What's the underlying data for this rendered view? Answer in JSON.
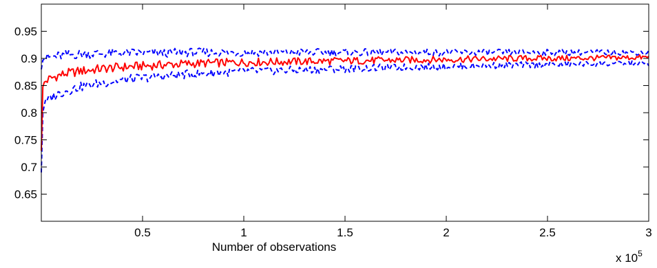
{
  "chart_data": {
    "type": "line",
    "xlabel": "Number of observations",
    "x_multiplier_label": "x 10",
    "x_multiplier_exponent": "5",
    "xlim": [
      0,
      300000
    ],
    "ylim": [
      0.6,
      1.0
    ],
    "xticks": [
      50000,
      100000,
      150000,
      200000,
      250000,
      300000
    ],
    "xtick_labels": [
      "0.5",
      "1",
      "1.5",
      "2",
      "2.5",
      "3"
    ],
    "yticks": [
      0.65,
      0.7,
      0.75,
      0.8,
      0.85,
      0.9,
      0.95
    ],
    "ytick_labels": [
      "0.65",
      "0.7",
      "0.75",
      "0.8",
      "0.85",
      "0.9",
      "0.95"
    ],
    "grid": false,
    "series": [
      {
        "color": "#ff0000",
        "style": "solid",
        "x": [
          0,
          500,
          1000,
          2000,
          4000,
          8000,
          12000,
          20000,
          30000,
          40000,
          50000,
          60000,
          70000,
          80000,
          90000,
          100000,
          120000,
          140000,
          160000,
          180000,
          200000,
          220000,
          240000,
          260000,
          280000,
          300000
        ],
        "values": [
          0.73,
          0.84,
          0.855,
          0.858,
          0.862,
          0.868,
          0.872,
          0.877,
          0.881,
          0.884,
          0.886,
          0.888,
          0.89,
          0.891,
          0.892,
          0.893,
          0.894,
          0.895,
          0.896,
          0.897,
          0.898,
          0.899,
          0.9,
          0.9,
          0.901,
          0.902
        ]
      },
      {
        "color": "#0000ff",
        "style": "dashed",
        "x": [
          0,
          500,
          1000,
          2000,
          4000,
          8000,
          12000,
          20000,
          30000,
          40000,
          50000,
          60000,
          70000,
          80000,
          90000,
          100000,
          120000,
          140000,
          160000,
          180000,
          200000,
          220000,
          240000,
          260000,
          280000,
          300000
        ],
        "values": [
          0.88,
          0.895,
          0.898,
          0.9,
          0.902,
          0.904,
          0.906,
          0.908,
          0.909,
          0.91,
          0.91,
          0.91,
          0.911,
          0.911,
          0.911,
          0.911,
          0.911,
          0.911,
          0.911,
          0.911,
          0.911,
          0.911,
          0.911,
          0.911,
          0.911,
          0.911
        ]
      },
      {
        "color": "#0000ff",
        "style": "dashed",
        "x": [
          0,
          500,
          1000,
          2000,
          4000,
          8000,
          12000,
          20000,
          30000,
          40000,
          50000,
          60000,
          70000,
          80000,
          90000,
          100000,
          120000,
          140000,
          160000,
          180000,
          200000,
          220000,
          240000,
          260000,
          280000,
          300000
        ],
        "values": [
          0.69,
          0.79,
          0.81,
          0.818,
          0.826,
          0.834,
          0.84,
          0.848,
          0.855,
          0.86,
          0.864,
          0.867,
          0.87,
          0.872,
          0.874,
          0.876,
          0.878,
          0.88,
          0.882,
          0.884,
          0.885,
          0.887,
          0.888,
          0.889,
          0.89,
          0.891
        ]
      }
    ]
  }
}
